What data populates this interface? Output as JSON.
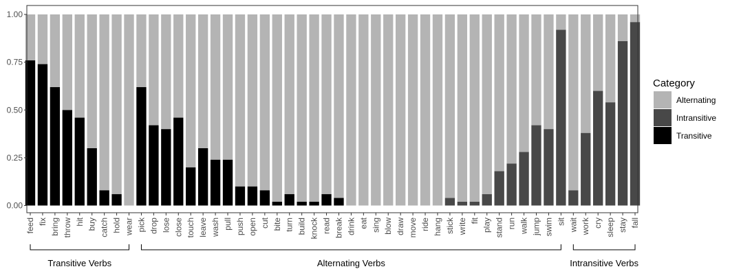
{
  "chart_data": {
    "type": "bar",
    "stacked": true,
    "ylim": [
      0,
      1
    ],
    "yticks": [
      "0.00",
      "0.25",
      "0.50",
      "0.75",
      "1.00"
    ],
    "ytick_values": [
      0,
      0.25,
      0.5,
      0.75,
      1.0
    ],
    "grid": false,
    "legend_placement": "right",
    "legend": {
      "title": "Category",
      "entries": [
        {
          "name": "Alternating",
          "color": "#b4b4b4"
        },
        {
          "name": "Intransitive",
          "color": "#484848"
        },
        {
          "name": "Transitive",
          "color": "#000000"
        }
      ]
    },
    "categories": [
      "feed",
      "fix",
      "bring",
      "throw",
      "hit",
      "buy",
      "catch",
      "hold",
      "wear",
      "pick",
      "drop",
      "lose",
      "close",
      "touch",
      "leave",
      "wash",
      "pull",
      "push",
      "open",
      "cut",
      "bite",
      "turn",
      "build",
      "knock",
      "read",
      "break",
      "drink",
      "eat",
      "sing",
      "blow",
      "draw",
      "move",
      "ride",
      "hang",
      "stick",
      "write",
      "fit",
      "play",
      "stand",
      "run",
      "walk",
      "jump",
      "swim",
      "sit",
      "wait",
      "work",
      "cry",
      "sleep",
      "stay",
      "fall"
    ],
    "series": [
      {
        "name": "Transitive",
        "values": [
          0.76,
          0.74,
          0.62,
          0.5,
          0.46,
          0.3,
          0.08,
          0.06,
          0,
          0.62,
          0.42,
          0.4,
          0.46,
          0.2,
          0.3,
          0.24,
          0.24,
          0.1,
          0.1,
          0.08,
          0.02,
          0.06,
          0.02,
          0.02,
          0.06,
          0.04,
          0,
          0,
          0,
          0,
          0,
          0,
          0,
          0,
          0,
          0,
          0,
          0,
          0,
          0,
          0,
          0,
          0,
          0,
          0,
          0,
          0,
          0,
          0,
          0
        ]
      },
      {
        "name": "Intransitive",
        "values": [
          0,
          0,
          0,
          0,
          0,
          0,
          0,
          0,
          0,
          0,
          0,
          0,
          0,
          0,
          0,
          0,
          0,
          0,
          0,
          0,
          0,
          0,
          0,
          0,
          0,
          0,
          0,
          0,
          0,
          0,
          0,
          0,
          0,
          0,
          0.04,
          0.02,
          0.02,
          0.06,
          0.18,
          0.22,
          0.28,
          0.42,
          0.4,
          0.92,
          0.08,
          0.38,
          0.6,
          0.54,
          0.86,
          0.96
        ]
      },
      {
        "name": "Alternating",
        "values": [
          0.24,
          0.26,
          0.38,
          0.5,
          0.54,
          0.7,
          0.92,
          0.94,
          1.0,
          0.38,
          0.58,
          0.6,
          0.54,
          0.8,
          0.7,
          0.76,
          0.76,
          0.9,
          0.9,
          0.92,
          0.98,
          0.94,
          0.98,
          0.98,
          0.94,
          0.96,
          1.0,
          1.0,
          1.0,
          1.0,
          1.0,
          1.0,
          1.0,
          1.0,
          0.96,
          0.98,
          0.98,
          0.94,
          0.82,
          0.78,
          0.72,
          0.58,
          0.6,
          0.08,
          0.92,
          0.62,
          0.4,
          0.46,
          0.14,
          0.04
        ]
      }
    ],
    "groups": [
      {
        "label": "Transitive Verbs",
        "start": "feed",
        "end": "wear"
      },
      {
        "label": "Alternating Verbs",
        "start": "pick",
        "end": "sit"
      },
      {
        "label": "Intransitive Verbs",
        "start": "wait",
        "end": "fall"
      }
    ]
  }
}
